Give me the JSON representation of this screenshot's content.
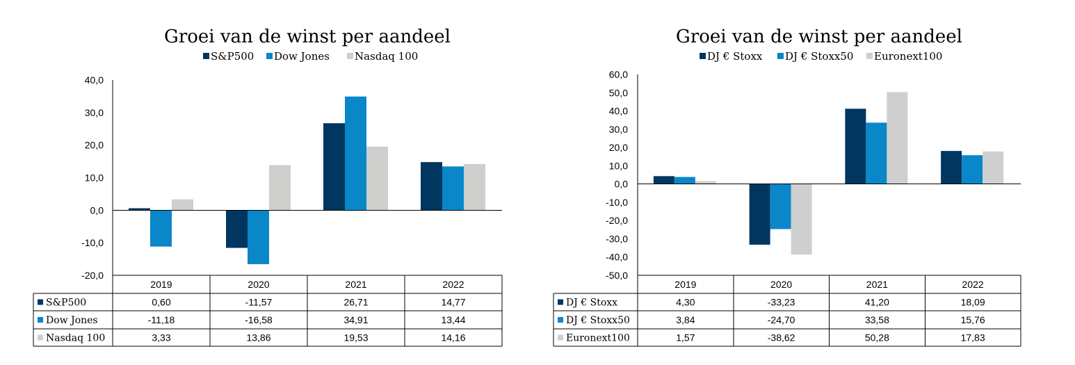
{
  "chart_data": [
    {
      "type": "bar",
      "title": "Groei van de winst per aandeel",
      "categories": [
        "2019",
        "2020",
        "2021",
        "2022"
      ],
      "ylim": [
        -20,
        40
      ],
      "yticks": [
        "40,0",
        "30,0",
        "20,0",
        "10,0",
        "0,0",
        "-10,0",
        "-20,0"
      ],
      "ytick_values": [
        40,
        30,
        20,
        10,
        0,
        -10,
        -20
      ],
      "legend_position": "top",
      "data_table": true,
      "series": [
        {
          "name": "S&P500",
          "color": "#003660",
          "values": [
            0.6,
            -11.57,
            26.71,
            14.77
          ],
          "labels": [
            "0,60",
            "-11,57",
            "26,71",
            "14,77"
          ]
        },
        {
          "name": "Dow Jones",
          "color": "#0a87c9",
          "values": [
            -11.18,
            -16.58,
            34.91,
            13.44
          ],
          "labels": [
            "-11,18",
            "-16,58",
            "34,91",
            "13,44"
          ]
        },
        {
          "name": "Nasdaq 100",
          "color": "#cfcfcd",
          "values": [
            3.33,
            13.86,
            19.53,
            14.16
          ],
          "labels": [
            "3,33",
            "13,86",
            "19,53",
            "14,16"
          ]
        }
      ]
    },
    {
      "type": "bar",
      "title": "Groei van de winst per aandeel",
      "categories": [
        "2019",
        "2020",
        "2021",
        "2022"
      ],
      "ylim": [
        -50,
        60
      ],
      "yticks": [
        "60,0",
        "50,0",
        "40,0",
        "30,0",
        "20,0",
        "10,0",
        "0,0",
        "-10,0",
        "-20,0",
        "-30,0",
        "-40,0",
        "-50,0"
      ],
      "ytick_values": [
        60,
        50,
        40,
        30,
        20,
        10,
        0,
        -10,
        -20,
        -30,
        -40,
        -50
      ],
      "legend_position": "top",
      "data_table": true,
      "series": [
        {
          "name": "DJ € Stoxx",
          "color": "#003660",
          "values": [
            4.3,
            -33.23,
            41.2,
            18.09
          ],
          "labels": [
            "4,30",
            "-33,23",
            "41,20",
            "18,09"
          ]
        },
        {
          "name": "DJ € Stoxx50",
          "color": "#0a87c9",
          "values": [
            3.84,
            -24.7,
            33.58,
            15.76
          ],
          "labels": [
            "3,84",
            "-24,70",
            "33,58",
            "15,76"
          ]
        },
        {
          "name": "Euronext100",
          "color": "#cfcfcd",
          "values": [
            1.57,
            -38.62,
            50.28,
            17.83
          ],
          "labels": [
            "1,57",
            "-38,62",
            "50,28",
            "17,83"
          ]
        }
      ]
    }
  ]
}
